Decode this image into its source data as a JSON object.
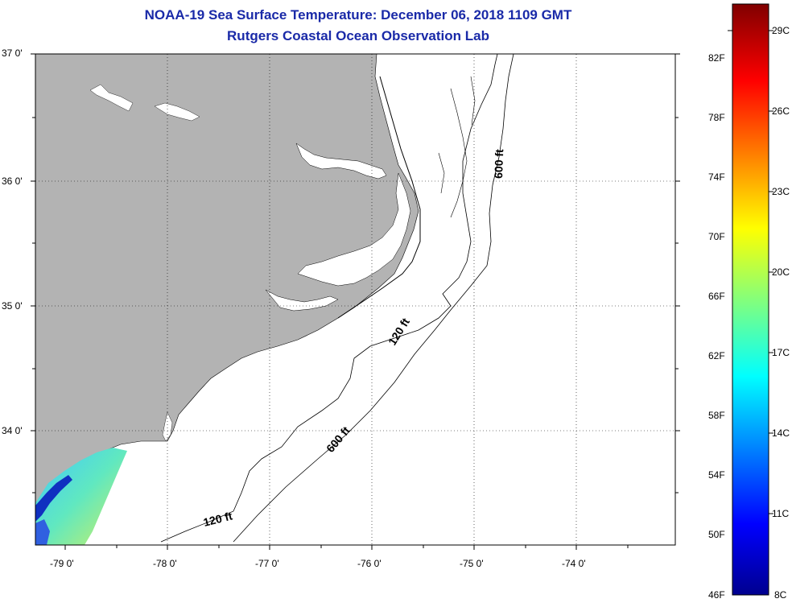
{
  "title": "NOAA-19 Sea Surface Temperature:  December 06, 2018 1109 GMT",
  "subtitle": "Rutgers Coastal Ocean Observation Lab",
  "map": {
    "lat_labels": [
      "37 0'",
      "36 0'",
      "35 0'",
      "34 0'"
    ],
    "lon_labels": [
      "-79 0'",
      "-78 0'",
      "-77 0'",
      "-76 0'",
      "-75 0'",
      "-74 0'"
    ],
    "land_color": "#b3b3b3",
    "ocean_color": "#ffffff",
    "grid": "dotted",
    "contours": [
      {
        "label": "120 ft",
        "positions": 2
      },
      {
        "label": "600 ft",
        "positions": 2
      }
    ]
  },
  "contour_labels": {
    "c120_north": "120 ft",
    "c120_south": "120 ft",
    "c600_north": "600 ft",
    "c600_south": "600 ft"
  },
  "colorbar": {
    "fahrenheit": [
      "82F",
      "78F",
      "74F",
      "70F",
      "66F",
      "62F",
      "58F",
      "54F",
      "50F",
      "46F"
    ],
    "celsius": [
      "29C",
      "26C",
      "23C",
      "20C",
      "17C",
      "14C",
      "11C",
      "8C"
    ],
    "stops": [
      "#00008f",
      "#0000ff",
      "#0080ff",
      "#00ffff",
      "#80ff80",
      "#ffff00",
      "#ff8000",
      "#ff0000",
      "#800000"
    ]
  }
}
